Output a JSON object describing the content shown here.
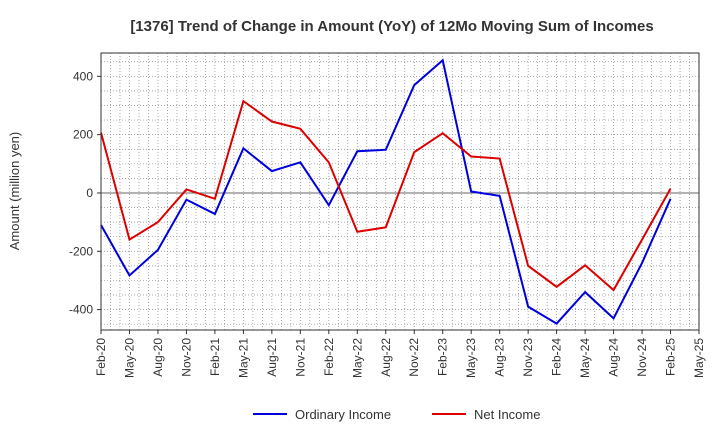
{
  "chart_data": {
    "type": "line",
    "title": "[1376]  Trend of Change in Amount (YoY) of 12Mo Moving Sum of Incomes",
    "ylabel": "Amount (million yen)",
    "xlabel": "",
    "ylim": [
      -470,
      480
    ],
    "yticks": [
      -400,
      -200,
      0,
      200,
      400
    ],
    "grid": true,
    "legend_position": "bottom",
    "x": [
      "Feb-20",
      "May-20",
      "Aug-20",
      "Nov-20",
      "Feb-21",
      "May-21",
      "Aug-21",
      "Nov-21",
      "Feb-22",
      "May-22",
      "Aug-22",
      "Nov-22",
      "Feb-23",
      "May-23",
      "Aug-23",
      "Nov-23",
      "Feb-24",
      "May-24",
      "Aug-24",
      "Nov-24",
      "Feb-25",
      "May-25"
    ],
    "series": [
      {
        "name": "Ordinary Income",
        "color": "#0000dd",
        "values": [
          -110,
          -283,
          -195,
          -23,
          -72,
          153,
          75,
          105,
          -42,
          143,
          148,
          370,
          455,
          5,
          -10,
          -390,
          -448,
          -340,
          -430,
          -240,
          -20,
          null
        ]
      },
      {
        "name": "Net Income",
        "color": "#dd0000",
        "values": [
          207,
          -160,
          -100,
          12,
          -20,
          315,
          245,
          220,
          105,
          -133,
          -118,
          140,
          205,
          125,
          118,
          -250,
          -322,
          -248,
          -333,
          -160,
          15,
          null
        ]
      }
    ]
  }
}
